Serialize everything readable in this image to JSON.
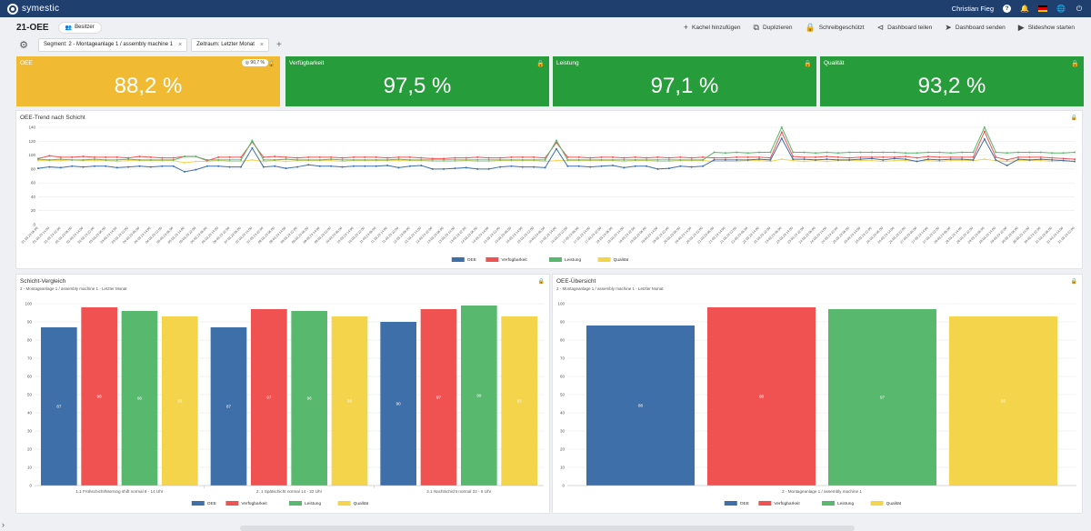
{
  "app": {
    "logo_text": "symestic",
    "user": "Christian Fieg"
  },
  "header": {
    "title": "21-OEE",
    "owner_label": "Besitzer"
  },
  "actions": [
    {
      "icon": "plus-icon",
      "label": "Kachel hinzufügen"
    },
    {
      "icon": "copy-icon",
      "label": "Duplizieren"
    },
    {
      "icon": "lock-icon",
      "label": "Schreibgeschützt"
    },
    {
      "icon": "share-icon",
      "label": "Dashboard teilen"
    },
    {
      "icon": "send-icon",
      "label": "Dashboard senden"
    },
    {
      "icon": "play-icon",
      "label": "Slideshow starten"
    }
  ],
  "filters": [
    {
      "label": "Segment: 2 - Montageanlage 1 / assembly machine 1"
    },
    {
      "label": "Zeitraum: Letzter Monat"
    }
  ],
  "kpis": [
    {
      "label": "OEE",
      "value": "88,2 %",
      "color": "#f0bb33",
      "target": "90,7 %"
    },
    {
      "label": "Verfügbarkeit",
      "value": "97,5 %",
      "color": "#279c3a"
    },
    {
      "label": "Leistung",
      "value": "97,1 %",
      "color": "#279c3a"
    },
    {
      "label": "Qualität",
      "value": "93,2 %",
      "color": "#279c3a"
    }
  ],
  "legend": [
    "OEE",
    "Verfügbarkeit",
    "Leistung",
    "Qualität"
  ],
  "colors": {
    "OEE": "#3f6fa8",
    "Verfügbarkeit": "#f05252",
    "Leistung": "#57b86e",
    "Qualität": "#f3d44a"
  },
  "trend": {
    "title": "OEE-Trend nach Schicht",
    "chart_data": {
      "type": "line",
      "ylim": [
        0,
        140
      ],
      "yticks": [
        0,
        20,
        40,
        60,
        80,
        100,
        120,
        140
      ],
      "x": [
        "01.03.23 06:00",
        "01.03.23 14:00",
        "01.03.23 22:00",
        "02.03.23 06:00",
        "02.03.23 14:00",
        "02.03.23 22:00",
        "03.03.23 06:00",
        "03.03.23 14:00",
        "03.03.23 22:00",
        "04.03.23 06:00",
        "04.03.23 14:00",
        "04.03.23 22:00",
        "05.03.23 06:00",
        "05.03.23 14:00",
        "05.03.23 22:00",
        "06.03.23 06:00",
        "06.03.23 14:00",
        "06.03.23 22:00",
        "07.03.23 06:00",
        "07.03.23 14:00",
        "07.03.23 22:00",
        "08.03.23 06:00",
        "08.03.23 14:00",
        "08.03.23 22:00",
        "09.03.23 06:00",
        "09.03.23 14:00",
        "09.03.23 22:00",
        "10.03.23 06:00",
        "10.03.23 14:00",
        "10.03.23 22:00",
        "11.03.23 06:00",
        "11.03.23 14:00",
        "11.03.23 22:00",
        "12.03.23 06:00",
        "12.03.23 14:00",
        "12.03.23 22:00",
        "13.03.23 06:00",
        "13.03.23 14:00",
        "13.03.23 22:00",
        "14.03.23 06:00",
        "14.03.23 14:00",
        "14.03.23 22:00",
        "15.03.23 06:00",
        "15.03.23 14:00",
        "15.03.23 22:00",
        "16.03.23 06:00",
        "16.03.23 14:00",
        "16.03.23 22:00",
        "17.03.23 06:00",
        "17.03.23 14:00",
        "17.03.23 22:00",
        "18.03.23 06:00",
        "18.03.23 14:00",
        "18.03.23 22:00",
        "19.03.23 06:00",
        "19.03.23 14:00",
        "19.03.23 22:00",
        "20.03.23 06:00",
        "20.03.23 14:00",
        "20.03.23 22:00",
        "21.03.23 06:00",
        "21.03.23 14:00",
        "21.03.23 22:00",
        "22.03.23 06:00",
        "22.03.23 14:00",
        "22.03.23 22:00",
        "23.03.23 06:00",
        "23.03.23 14:00",
        "23.03.23 22:00",
        "24.03.23 06:00",
        "24.03.23 14:00",
        "24.03.23 22:00",
        "25.03.23 06:00",
        "25.03.23 14:00",
        "25.03.23 22:00",
        "26.03.23 06:00",
        "26.03.23 14:00",
        "26.03.23 22:00",
        "27.03.23 06:00",
        "27.03.23 14:00",
        "27.03.23 22:00",
        "28.03.23 06:00",
        "28.03.23 14:00",
        "28.03.23 22:00",
        "29.03.23 06:00",
        "29.03.23 14:00",
        "29.03.23 22:00",
        "30.03.23 06:00",
        "30.03.23 14:00",
        "30.03.23 22:00",
        "31.03.23 06:00",
        "31.03.23 14:00",
        "31.03.23 22:00"
      ],
      "series": [
        {
          "name": "OEE",
          "values": [
            81,
            83,
            82,
            84,
            83,
            84,
            84,
            82,
            83,
            84,
            83,
            84,
            84,
            76,
            79,
            84,
            84,
            83,
            83,
            110,
            83,
            84,
            81,
            83,
            86,
            84,
            84,
            83,
            84,
            84,
            84,
            85,
            82,
            84,
            85,
            80,
            80,
            81,
            82,
            80,
            80,
            83,
            84,
            83,
            83,
            82,
            109,
            84,
            84,
            83,
            84,
            85,
            82,
            84,
            84,
            80,
            81,
            84,
            83,
            84,
            93,
            93,
            93,
            93,
            94,
            93,
            124,
            94,
            94,
            93,
            94,
            93,
            93,
            94,
            95,
            93,
            95,
            94,
            91,
            94,
            93,
            94,
            94,
            93,
            123,
            93,
            85,
            94,
            93,
            94,
            93,
            92,
            91
          ]
        },
        {
          "name": "Verfügbarkeit",
          "values": [
            95,
            99,
            97,
            97,
            98,
            97,
            97,
            97,
            96,
            98,
            97,
            96,
            96,
            98,
            98,
            92,
            97,
            97,
            97,
            119,
            97,
            98,
            97,
            96,
            97,
            97,
            97,
            96,
            97,
            97,
            97,
            96,
            97,
            97,
            96,
            95,
            95,
            96,
            96,
            97,
            96,
            96,
            97,
            97,
            97,
            96,
            118,
            97,
            97,
            96,
            97,
            97,
            96,
            97,
            96,
            97,
            96,
            97,
            96,
            97,
            96,
            96,
            97,
            97,
            97,
            96,
            133,
            98,
            97,
            97,
            98,
            97,
            96,
            97,
            97,
            97,
            97,
            98,
            96,
            98,
            97,
            97,
            97,
            97,
            134,
            97,
            93,
            97,
            97,
            97,
            96,
            95,
            94
          ]
        },
        {
          "name": "Leistung",
          "values": [
            94,
            93,
            94,
            93,
            93,
            94,
            93,
            93,
            94,
            93,
            93,
            93,
            93,
            98,
            98,
            93,
            93,
            93,
            93,
            121,
            93,
            93,
            94,
            93,
            93,
            93,
            94,
            93,
            93,
            93,
            93,
            93,
            94,
            93,
            93,
            93,
            93,
            93,
            93,
            93,
            93,
            93,
            93,
            93,
            93,
            93,
            121,
            93,
            93,
            93,
            93,
            93,
            93,
            93,
            93,
            93,
            93,
            93,
            93,
            93,
            104,
            103,
            104,
            103,
            104,
            104,
            140,
            104,
            104,
            103,
            104,
            103,
            104,
            104,
            104,
            104,
            104,
            103,
            103,
            104,
            104,
            103,
            104,
            104,
            140,
            104,
            103,
            104,
            104,
            104,
            103,
            103,
            104
          ]
        },
        {
          "name": "Qualität",
          "values": [
            92,
            92,
            92,
            93,
            92,
            92,
            92,
            91,
            92,
            92,
            92,
            92,
            92,
            89,
            91,
            91,
            92,
            91,
            91,
            93,
            91,
            92,
            91,
            92,
            92,
            92,
            92,
            91,
            92,
            92,
            92,
            92,
            92,
            92,
            92,
            91,
            91,
            91,
            92,
            91,
            91,
            92,
            92,
            92,
            92,
            91,
            92,
            92,
            92,
            92,
            92,
            92,
            91,
            92,
            92,
            91,
            91,
            92,
            92,
            92,
            91,
            91,
            91,
            92,
            92,
            91,
            94,
            92,
            91,
            92,
            91,
            92,
            92,
            92,
            92,
            91,
            92,
            92,
            91,
            92,
            91,
            92,
            92,
            92,
            94,
            92,
            91,
            92,
            92,
            92,
            91,
            92,
            91
          ]
        }
      ]
    }
  },
  "shift_compare": {
    "title": "Schicht-Vergleich",
    "subtitle": "2 - Montageanlage 1 / assembly machine 1 - Letzter Monat",
    "chart_data": {
      "type": "bar",
      "ylim": [
        0,
        100
      ],
      "yticks": [
        0,
        10,
        20,
        30,
        40,
        50,
        60,
        70,
        80,
        90,
        100
      ],
      "categories": [
        "1.1 Frühschicht/Morning shift normal 6 - 14 Uhr",
        "2. 1 Spätschicht normal 14 - 22 Uhr",
        "3.1 Nachtschicht normal 22 - 6 Uhr"
      ],
      "series": [
        {
          "name": "OEE",
          "values": [
            87,
            87,
            90
          ]
        },
        {
          "name": "Verfügbarkeit",
          "values": [
            98,
            97,
            97
          ]
        },
        {
          "name": "Leistung",
          "values": [
            96,
            96,
            99
          ]
        },
        {
          "name": "Qualität",
          "values": [
            93,
            93,
            93
          ]
        }
      ]
    }
  },
  "overview": {
    "title": "OEE-Übersicht",
    "subtitle": "2 - Montageanlage 1 / assembly machine 1 - Letzter Monat",
    "chart_data": {
      "type": "bar",
      "ylim": [
        0,
        100
      ],
      "yticks": [
        0,
        10,
        20,
        30,
        40,
        50,
        60,
        70,
        80,
        90,
        100
      ],
      "categories": [
        "2 - Montageanlage 1 / assembly machine 1"
      ],
      "series": [
        {
          "name": "OEE",
          "values": [
            88
          ]
        },
        {
          "name": "Verfügbarkeit",
          "values": [
            98
          ]
        },
        {
          "name": "Leistung",
          "values": [
            97
          ]
        },
        {
          "name": "Qualität",
          "values": [
            93
          ]
        }
      ]
    }
  }
}
